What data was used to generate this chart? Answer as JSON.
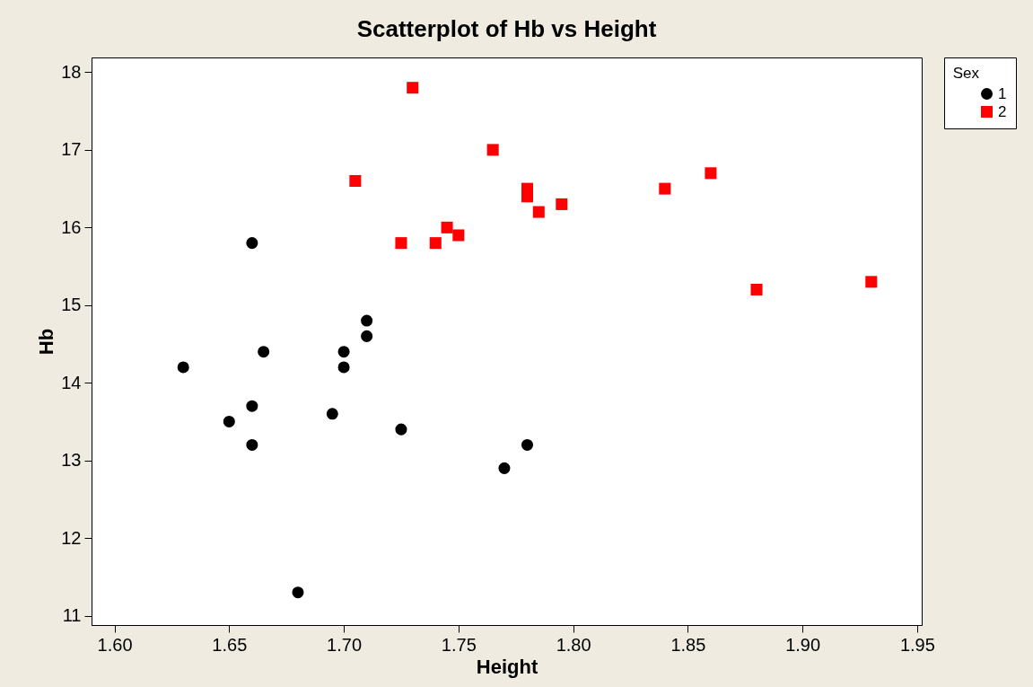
{
  "chart_data": {
    "type": "scatter",
    "title": "Scatterplot of Hb vs Height",
    "xlabel": "Height",
    "ylabel": "Hb",
    "legend_title": "Sex",
    "legend": "right",
    "grid": false,
    "xlim": [
      1.59,
      1.952
    ],
    "xticks": [
      {
        "value": 1.6,
        "label": "1.60"
      },
      {
        "value": 1.65,
        "label": "1.65"
      },
      {
        "value": 1.7,
        "label": "1.70"
      },
      {
        "value": 1.75,
        "label": "1.75"
      },
      {
        "value": 1.8,
        "label": "1.80"
      },
      {
        "value": 1.85,
        "label": "1.85"
      },
      {
        "value": 1.9,
        "label": "1.90"
      },
      {
        "value": 1.95,
        "label": "1.95"
      }
    ],
    "ylim": [
      10.88,
      18.19
    ],
    "yticks": [
      11,
      12,
      13,
      14,
      15,
      16,
      17,
      18
    ],
    "series": [
      {
        "name": "1",
        "color": "#000000",
        "marker": "circle",
        "x": [
          1.63,
          1.65,
          1.66,
          1.66,
          1.66,
          1.665,
          1.68,
          1.695,
          1.7,
          1.7,
          1.71,
          1.71,
          1.725,
          1.77,
          1.78
        ],
        "values": [
          14.2,
          13.5,
          15.8,
          13.7,
          13.2,
          14.4,
          11.3,
          13.6,
          14.4,
          14.2,
          14.8,
          14.6,
          13.4,
          12.9,
          13.2
        ]
      },
      {
        "name": "2",
        "color": "#ff0000",
        "marker": "square",
        "x": [
          1.705,
          1.73,
          1.725,
          1.74,
          1.745,
          1.75,
          1.765,
          1.78,
          1.78,
          1.785,
          1.795,
          1.84,
          1.86,
          1.88,
          1.93
        ],
        "values": [
          16.6,
          17.8,
          15.8,
          15.8,
          16.0,
          15.9,
          17.0,
          16.5,
          16.4,
          16.2,
          16.3,
          16.5,
          16.7,
          15.2,
          15.3
        ]
      }
    ]
  }
}
